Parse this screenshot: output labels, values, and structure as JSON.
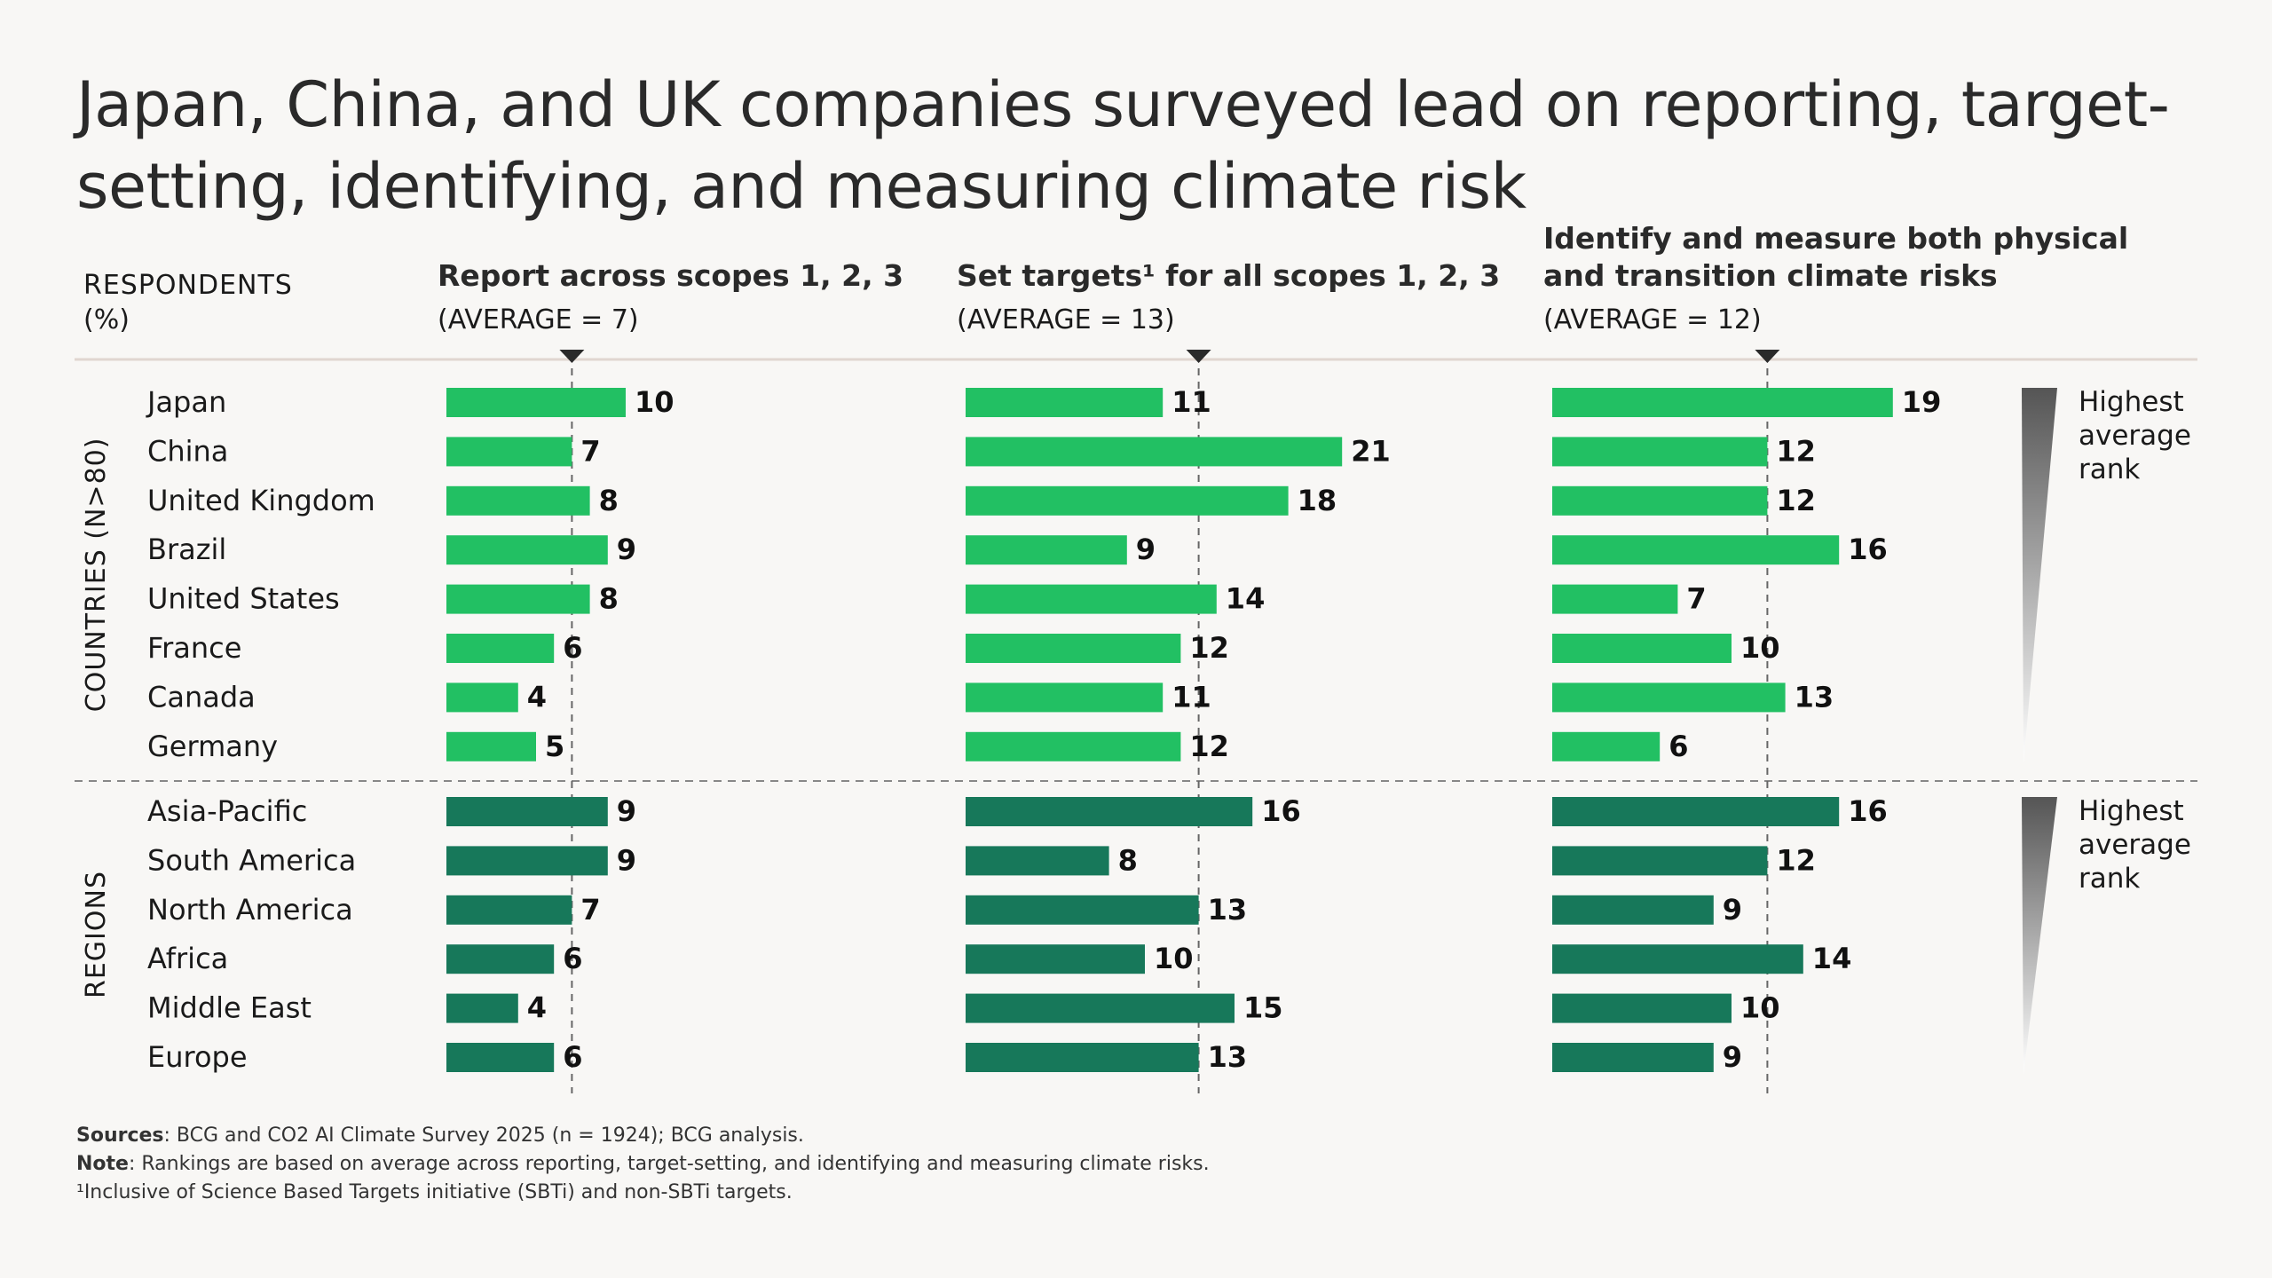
{
  "title": "Japan, China, and UK companies surveyed lead on reporting, target-setting, identifying, and measuring climate risk",
  "footer": {
    "sources_label": "Sources",
    "sources_text": ": BCG and CO2 AI Climate Survey 2025 (n = 1924); BCG analysis.",
    "note_label": "Note",
    "note_text": ": Rankings are based on average across reporting, target-setting, and identifying and measuring climate risks.",
    "footnote": "¹Inclusive of Science Based Targets initiative (SBTi) and non-SBTi targets."
  },
  "chart_data": {
    "type": "bar",
    "respondents_label": "RESPONDENTS",
    "respondents_unit": "(%)",
    "rank_label_lines": [
      "Highest",
      "average",
      "rank"
    ],
    "colors": {
      "countries": "#22c063",
      "regions": "#17785a",
      "average_line": "#666666",
      "separator": "#e0d6d0"
    },
    "columns": [
      {
        "title_lines": [
          "Report across scopes 1, 2, 3"
        ],
        "average_label": "(AVERAGE = 7)",
        "average": 7,
        "scale_max": 21
      },
      {
        "title_lines": [
          "Set targets¹ for all scopes 1, 2, 3"
        ],
        "average_label": "(AVERAGE = 13)",
        "average": 13,
        "scale_max": 21
      },
      {
        "title_lines": [
          "Identify and measure both physical",
          "and transition climate risks"
        ],
        "average_label": "(AVERAGE = 12)",
        "average": 12,
        "scale_max": 21
      }
    ],
    "groups": [
      {
        "name": "COUNTRIES (N>80)",
        "color_key": "countries",
        "rows": [
          {
            "label": "Japan",
            "values": [
              10,
              11,
              19
            ]
          },
          {
            "label": "China",
            "values": [
              7,
              21,
              12
            ]
          },
          {
            "label": "United Kingdom",
            "values": [
              8,
              18,
              12
            ]
          },
          {
            "label": "Brazil",
            "values": [
              9,
              9,
              16
            ]
          },
          {
            "label": "United States",
            "values": [
              8,
              14,
              7
            ]
          },
          {
            "label": "France",
            "values": [
              6,
              12,
              10
            ]
          },
          {
            "label": "Canada",
            "values": [
              4,
              11,
              13
            ]
          },
          {
            "label": "Germany",
            "values": [
              5,
              12,
              6
            ]
          }
        ]
      },
      {
        "name": "REGIONS",
        "color_key": "regions",
        "rows": [
          {
            "label": "Asia-Pacific",
            "values": [
              9,
              16,
              16
            ]
          },
          {
            "label": "South America",
            "values": [
              9,
              8,
              12
            ]
          },
          {
            "label": "North America",
            "values": [
              7,
              13,
              9
            ]
          },
          {
            "label": "Africa",
            "values": [
              6,
              10,
              14
            ]
          },
          {
            "label": "Middle East",
            "values": [
              4,
              15,
              10
            ]
          },
          {
            "label": "Europe",
            "values": [
              6,
              13,
              9
            ]
          }
        ]
      }
    ]
  }
}
